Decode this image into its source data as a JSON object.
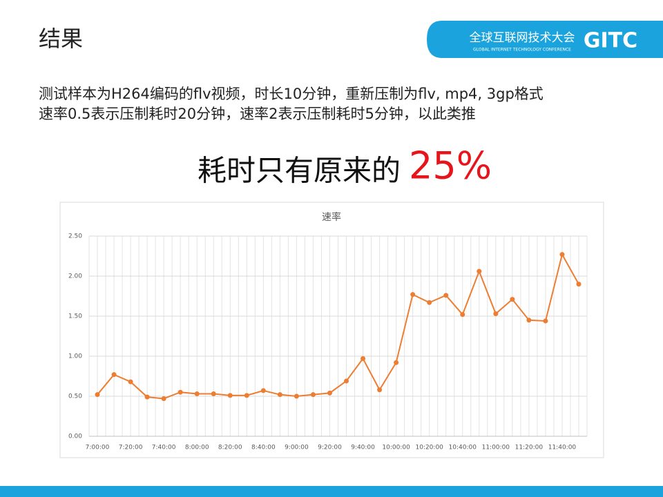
{
  "slide": {
    "title": "结果",
    "logo": {
      "name": "全球互联网技术大会",
      "subtitle": "GLOBAL INTERNET TECHNOLOGY CONFERENCE",
      "mark": "GITC"
    },
    "lines": [
      "测试样本为H264编码的flv视频，时长10分钟，重新压制为flv, mp4, 3gp格式",
      "速率0.5表示压制耗时20分钟，速率2表示压制耗时5分钟，以此类推"
    ],
    "headline": "耗时只有原来的",
    "highlight": "25%"
  },
  "chart_data": {
    "type": "line",
    "title": "速率",
    "categories": [
      "7:00:00",
      null,
      "7:20:00",
      null,
      "7:40:00",
      null,
      "8:00:00",
      null,
      "8:20:00",
      null,
      "8:40:00",
      null,
      "9:00:00",
      null,
      "9:20:00",
      null,
      "9:40:00",
      null,
      "10:00:00",
      null,
      "10:20:00",
      null,
      "10:40:00",
      null,
      "11:00:00",
      null,
      "11:20:00",
      null,
      "11:40:00",
      null
    ],
    "series": [
      {
        "name": "速率",
        "color": "#ed7d31",
        "values": [
          0.52,
          0.77,
          0.68,
          0.49,
          0.47,
          0.55,
          0.53,
          0.53,
          0.51,
          0.51,
          0.57,
          0.52,
          0.5,
          0.52,
          0.54,
          0.69,
          0.97,
          0.58,
          0.92,
          1.77,
          1.67,
          1.76,
          1.52,
          2.06,
          1.53,
          1.71,
          1.45,
          1.44,
          2.27,
          1.9
        ]
      }
    ],
    "ylim": [
      0,
      2.5
    ],
    "yticks": [
      {
        "value": 0,
        "label": "0.00"
      },
      {
        "value": 0.5,
        "label": "0.50"
      },
      {
        "value": 1,
        "label": "1.00"
      },
      {
        "value": 1.5,
        "label": "1.50"
      },
      {
        "value": 2,
        "label": "2.00"
      },
      {
        "value": 2.5,
        "label": "2.50"
      }
    ],
    "grid": true
  }
}
